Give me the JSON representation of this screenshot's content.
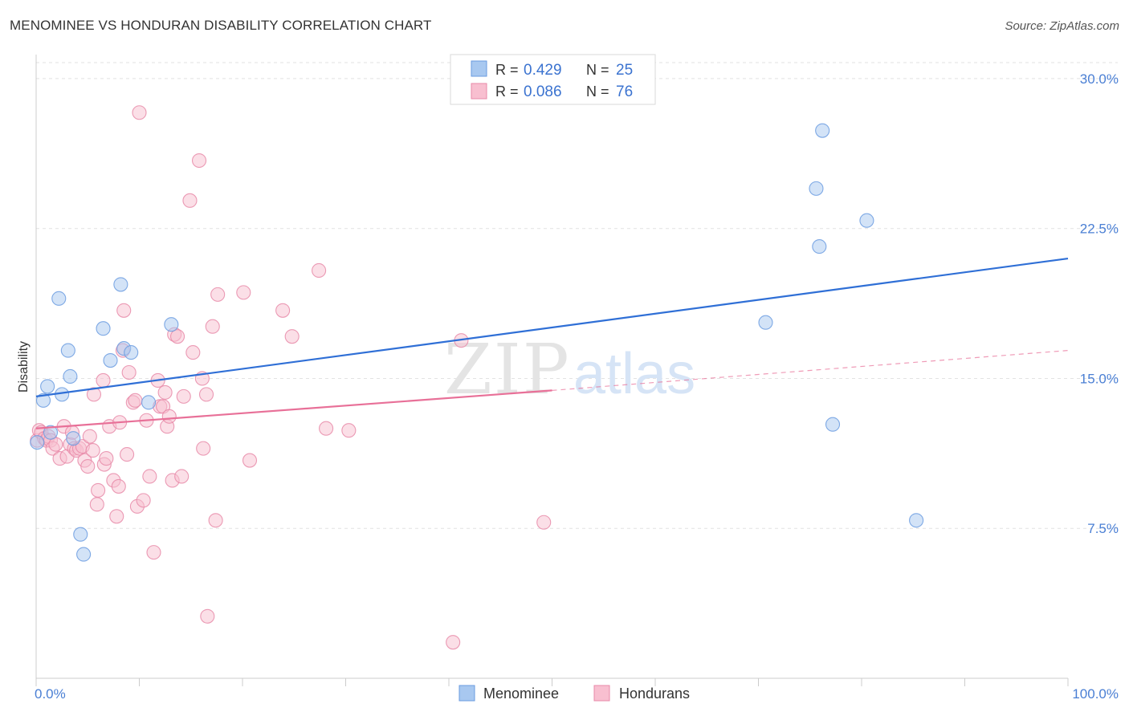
{
  "header": {
    "title": "MENOMINEE VS HONDURAN DISABILITY CORRELATION CHART",
    "source": "Source: ZipAtlas.com"
  },
  "legend": {
    "r_label": "R =",
    "n_label": "N =",
    "entries": [
      {
        "r": "0.429",
        "n": "25",
        "color": "#a8c8f0",
        "stroke": "#6a9be0"
      },
      {
        "r": "0.086",
        "n": "76",
        "color": "#f8bfd0",
        "stroke": "#e88aa8"
      }
    ]
  },
  "bottom_legend": [
    "Menominee",
    "Hondurans"
  ],
  "watermark": {
    "zip": "ZIP",
    "atlas": "atlas"
  },
  "chart_data": {
    "type": "scatter",
    "ylabel": "Disability",
    "xlabel": "",
    "x_tick_labels": [
      "0.0%",
      "100.0%"
    ],
    "y_tick_labels": [
      "7.5%",
      "15.0%",
      "22.5%",
      "30.0%"
    ],
    "y_ticks": [
      7.5,
      15.0,
      22.5,
      30.0
    ],
    "xlim": [
      0,
      100
    ],
    "ylim": [
      0,
      30.8
    ],
    "grid": true,
    "series": [
      {
        "name": "Menominee",
        "color": "#6a9be0",
        "fill": "#a8c8f0",
        "line_color": "#2f6fd6",
        "trend": {
          "x0": 0,
          "y0": 14.1,
          "x1": 100,
          "y1": 21.0
        },
        "points": [
          [
            0.1,
            11.8
          ],
          [
            0.7,
            13.9
          ],
          [
            1.1,
            14.6
          ],
          [
            2.2,
            19.0
          ],
          [
            2.5,
            14.2
          ],
          [
            3.1,
            16.4
          ],
          [
            3.3,
            15.1
          ],
          [
            3.6,
            12.0
          ],
          [
            4.3,
            7.2
          ],
          [
            4.6,
            6.2
          ],
          [
            6.5,
            17.5
          ],
          [
            7.2,
            15.9
          ],
          [
            8.2,
            19.7
          ],
          [
            8.5,
            16.5
          ],
          [
            9.2,
            16.3
          ],
          [
            10.9,
            13.8
          ],
          [
            13.1,
            17.7
          ],
          [
            70.7,
            17.8
          ],
          [
            75.6,
            24.5
          ],
          [
            77.2,
            12.7
          ],
          [
            75.9,
            21.6
          ],
          [
            76.2,
            27.4
          ],
          [
            80.5,
            22.9
          ],
          [
            85.3,
            7.9
          ],
          [
            1.4,
            12.3
          ]
        ]
      },
      {
        "name": "Hondurans",
        "color": "#e88aa8",
        "fill": "#f8bfd0",
        "line_color": "#e87098",
        "trend": {
          "x0": 0,
          "y0": 12.5,
          "x1": 50,
          "y1": 14.4
        },
        "trend_dashed": {
          "x0": 50,
          "y0": 14.4,
          "x1": 100,
          "y1": 16.4
        },
        "points": [
          [
            0.1,
            11.9
          ],
          [
            0.3,
            12.4
          ],
          [
            0.5,
            12.3
          ],
          [
            0.8,
            12.0
          ],
          [
            1.0,
            11.9
          ],
          [
            1.2,
            12.1
          ],
          [
            1.4,
            11.9
          ],
          [
            1.6,
            11.5
          ],
          [
            1.9,
            11.7
          ],
          [
            2.3,
            11.0
          ],
          [
            2.7,
            12.6
          ],
          [
            3.0,
            11.1
          ],
          [
            3.3,
            11.7
          ],
          [
            3.5,
            12.3
          ],
          [
            3.7,
            11.5
          ],
          [
            3.9,
            11.4
          ],
          [
            4.2,
            11.5
          ],
          [
            4.5,
            11.6
          ],
          [
            4.7,
            10.9
          ],
          [
            5.0,
            10.6
          ],
          [
            5.2,
            12.1
          ],
          [
            5.5,
            11.4
          ],
          [
            5.6,
            14.2
          ],
          [
            5.9,
            8.7
          ],
          [
            6.0,
            9.4
          ],
          [
            6.5,
            14.9
          ],
          [
            6.6,
            10.7
          ],
          [
            6.8,
            11.0
          ],
          [
            7.1,
            12.6
          ],
          [
            7.5,
            9.9
          ],
          [
            7.8,
            8.1
          ],
          [
            8.0,
            9.6
          ],
          [
            8.1,
            12.8
          ],
          [
            8.4,
            16.4
          ],
          [
            8.5,
            18.4
          ],
          [
            8.8,
            11.2
          ],
          [
            9.0,
            15.3
          ],
          [
            9.4,
            13.8
          ],
          [
            9.6,
            13.9
          ],
          [
            9.8,
            8.6
          ],
          [
            10.0,
            28.3
          ],
          [
            10.4,
            8.9
          ],
          [
            10.7,
            12.9
          ],
          [
            11.0,
            10.1
          ],
          [
            11.4,
            6.3
          ],
          [
            11.8,
            14.9
          ],
          [
            12.0,
            13.6
          ],
          [
            12.3,
            13.6
          ],
          [
            12.5,
            14.3
          ],
          [
            12.7,
            12.6
          ],
          [
            12.9,
            13.1
          ],
          [
            13.2,
            9.9
          ],
          [
            13.4,
            17.2
          ],
          [
            13.7,
            17.1
          ],
          [
            14.1,
            10.1
          ],
          [
            14.3,
            14.1
          ],
          [
            14.9,
            23.9
          ],
          [
            15.2,
            16.3
          ],
          [
            15.8,
            25.9
          ],
          [
            16.1,
            15.0
          ],
          [
            16.2,
            11.5
          ],
          [
            16.5,
            14.2
          ],
          [
            16.6,
            3.1
          ],
          [
            17.1,
            17.6
          ],
          [
            17.4,
            7.9
          ],
          [
            17.6,
            19.2
          ],
          [
            20.1,
            19.3
          ],
          [
            20.7,
            10.9
          ],
          [
            23.9,
            18.4
          ],
          [
            24.8,
            17.1
          ],
          [
            27.4,
            20.4
          ],
          [
            28.1,
            12.5
          ],
          [
            30.3,
            12.4
          ],
          [
            40.4,
            1.8
          ],
          [
            41.2,
            16.9
          ],
          [
            49.2,
            7.8
          ]
        ]
      }
    ]
  }
}
